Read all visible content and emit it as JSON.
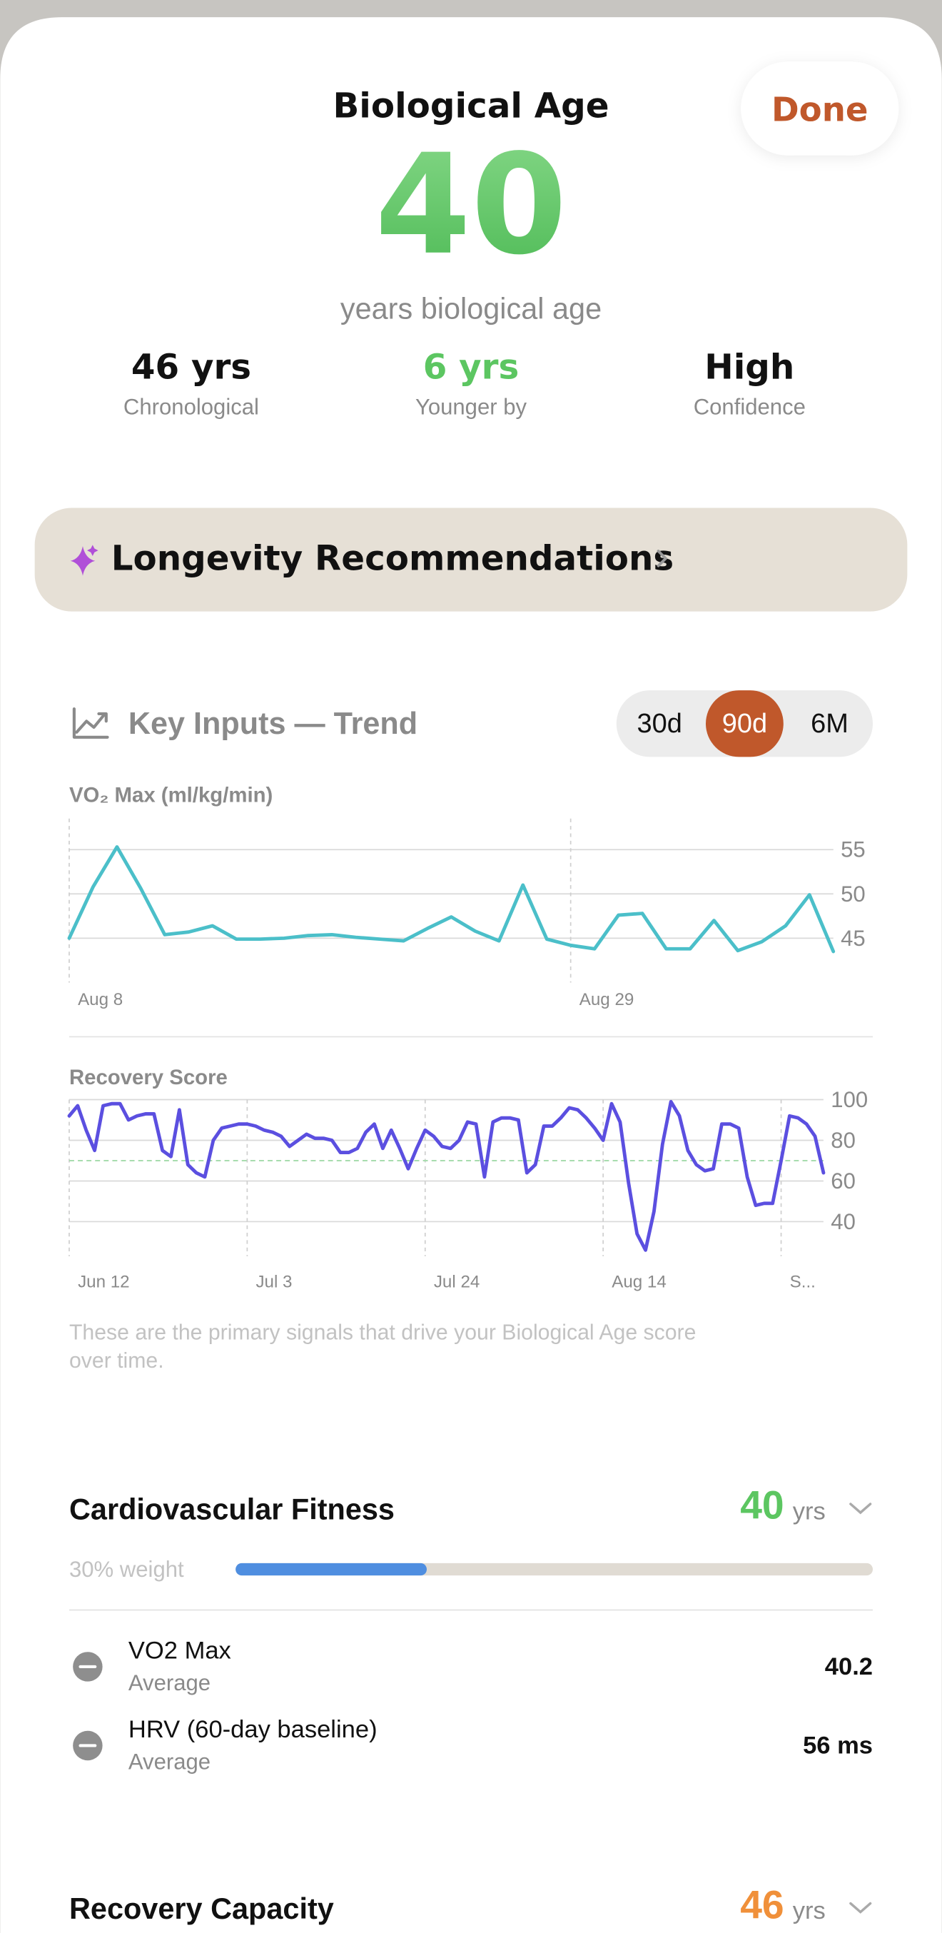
{
  "header": {
    "title": "Biological Age",
    "done": "Done",
    "age": 40,
    "age_caption": "years biological age",
    "stats": [
      {
        "value": "46 yrs",
        "label": "Chronological",
        "color": "#111111"
      },
      {
        "value": "6 yrs",
        "label": "Younger by",
        "color": "#5cc661"
      },
      {
        "value": "High",
        "label": "Confidence",
        "color": "#111111"
      }
    ]
  },
  "recommendations": {
    "label": "Longevity Recommendations"
  },
  "trend": {
    "title": "Key Inputs — Trend",
    "ranges": [
      "30d",
      "90d",
      "6M"
    ],
    "selected_range": 1,
    "footnote_lines": [
      "These are the primary signals that drive your Biological Age score",
      "over time."
    ]
  },
  "chart_data": [
    {
      "type": "line",
      "title": "VO₂ Max (ml/kg/min)",
      "color": "#4bbfc9",
      "categories": [
        "Aug 8",
        null,
        null,
        null,
        null,
        null,
        null,
        null,
        null,
        null,
        null,
        null,
        null,
        null,
        null,
        null,
        null,
        null,
        null,
        null,
        null,
        "Aug 29",
        null,
        null,
        null,
        null,
        null,
        null,
        null,
        null,
        null,
        null,
        null
      ],
      "values": [
        45,
        50.8,
        55.3,
        50.6,
        45.4,
        45.7,
        46.4,
        44.9,
        44.9,
        45,
        45.3,
        45.4,
        45.1,
        44.9,
        44.7,
        46.1,
        47.4,
        45.8,
        44.7,
        51,
        44.9,
        44.2,
        43.8,
        47.6,
        47.8,
        43.8,
        43.8,
        47,
        43.6,
        44.6,
        46.4,
        49.9,
        43.5
      ],
      "ylim": [
        40,
        58.5
      ],
      "yticks": [
        45,
        50,
        55
      ],
      "grid": true
    },
    {
      "type": "line",
      "title": "Recovery Score",
      "color": "#5b4fe0",
      "categories": [
        "Jun 12",
        null,
        null,
        null,
        null,
        null,
        null,
        null,
        null,
        null,
        null,
        null,
        null,
        null,
        null,
        null,
        null,
        null,
        null,
        null,
        null,
        "Jul 3",
        null,
        null,
        null,
        null,
        null,
        null,
        null,
        null,
        null,
        null,
        null,
        null,
        null,
        null,
        null,
        null,
        null,
        null,
        null,
        null,
        "Jul 24",
        null,
        null,
        null,
        null,
        null,
        null,
        null,
        null,
        null,
        null,
        null,
        null,
        null,
        null,
        null,
        null,
        null,
        null,
        null,
        null,
        "Aug 14",
        null,
        null,
        null,
        null,
        null,
        null,
        null,
        null,
        null,
        null,
        null,
        null,
        null,
        null,
        null,
        null,
        null,
        null,
        null,
        null,
        "S...",
        null,
        null,
        null,
        null,
        null
      ],
      "values": [
        92,
        97,
        85,
        75,
        97,
        98,
        98,
        90,
        92,
        93,
        93,
        75,
        72,
        95,
        68,
        64,
        62,
        80,
        86,
        87,
        88,
        88,
        87,
        85,
        84,
        82,
        77,
        80,
        83,
        81,
        81,
        80,
        74,
        74,
        76,
        84,
        88,
        76,
        85,
        76,
        66,
        76,
        85,
        82,
        77,
        76,
        80,
        89,
        88,
        62,
        89,
        91,
        91,
        90,
        64,
        68,
        87,
        87,
        91,
        96,
        95,
        91,
        86,
        80,
        98,
        89,
        59,
        34,
        26,
        45,
        78,
        99,
        92,
        75,
        68,
        65,
        66,
        88,
        88,
        86,
        62,
        48,
        49,
        49,
        70,
        92,
        91,
        88,
        82,
        64
      ],
      "ylim": [
        23,
        100
      ],
      "yticks": [
        40,
        60,
        80,
        100
      ],
      "grid": true,
      "reference_line": 70,
      "reference_color": "#a8dcae"
    }
  ],
  "factors": [
    {
      "name": "Cardiovascular Fitness",
      "age": 40,
      "unit": "yrs",
      "color": "#5cc661",
      "weight": {
        "value": 30,
        "label": "30% weight"
      },
      "metrics": [
        {
          "name": "VO2 Max",
          "stat": "Average",
          "value": "40.2"
        },
        {
          "name": "HRV (60-day baseline)",
          "stat": "Average",
          "value": "56 ms"
        }
      ]
    },
    {
      "name": "Recovery Capacity",
      "age": 46,
      "unit": "yrs",
      "color": "#f0903a"
    }
  ]
}
